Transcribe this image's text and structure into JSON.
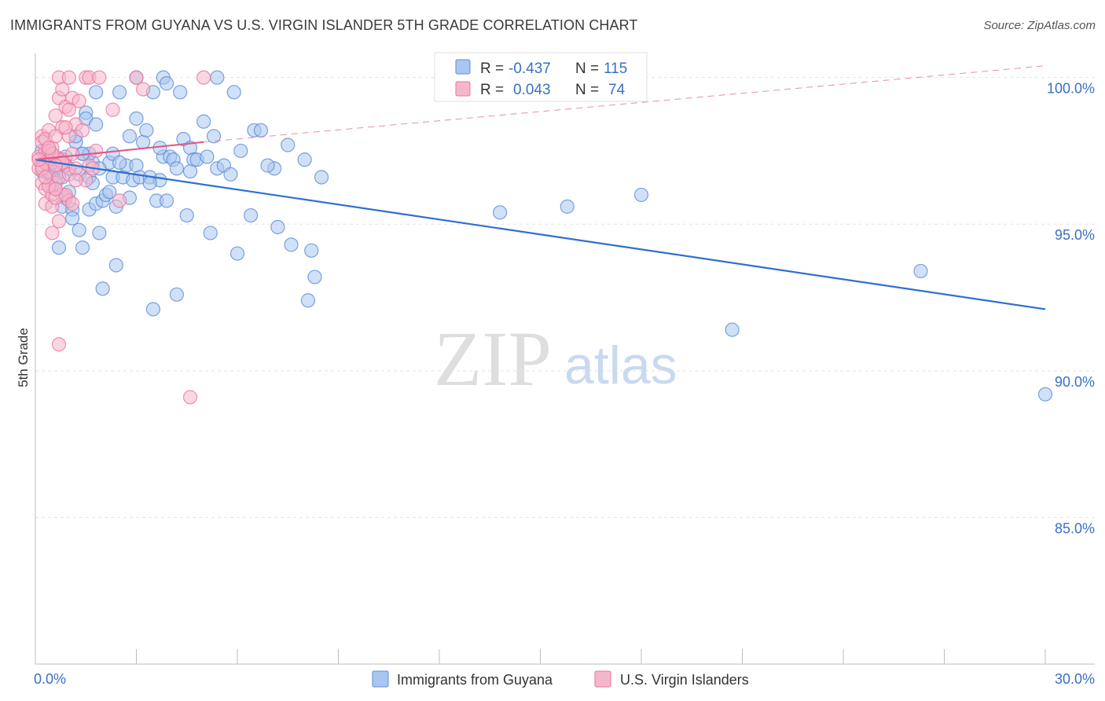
{
  "header": {
    "title": "IMMIGRANTS FROM GUYANA VS U.S. VIRGIN ISLANDER 5TH GRADE CORRELATION CHART",
    "source": "Source: ZipAtlas.com"
  },
  "watermark": {
    "zip": "ZIP",
    "atlas": "atlas"
  },
  "colors": {
    "blue_fill": "#a9c6f0",
    "blue_stroke": "#5b8dd6",
    "blue_line": "#2f6fd0",
    "pink_fill": "#f5b6cb",
    "pink_stroke": "#e8769e",
    "pink_line": "#e05a8a",
    "grid": "#e3e3e3",
    "axis_label": "#3a6fc4"
  },
  "legend": {
    "rows": [
      {
        "r_label": "R =",
        "r_value": "-0.437",
        "n_label": "N =",
        "n_value": "115"
      },
      {
        "r_label": "R =",
        "r_value": "0.043",
        "n_label": "N =",
        "n_value": "74"
      }
    ]
  },
  "chart_data": {
    "type": "scatter",
    "title": "IMMIGRANTS FROM GUYANA VS U.S. VIRGIN ISLANDER 5TH GRADE CORRELATION CHART",
    "xlabel": "",
    "ylabel": "5th Grade",
    "xlim": [
      0,
      30
    ],
    "ylim": [
      80,
      100.5
    ],
    "x_tick_labels": [
      "0.0%",
      "30.0%"
    ],
    "y_ticks": [
      85,
      90,
      95,
      100
    ],
    "y_tick_labels": [
      "85.0%",
      "90.0%",
      "95.0%",
      "100.0%"
    ],
    "grid": true,
    "legend_position": "top-center",
    "series": [
      {
        "name": "Immigrants from Guyana",
        "color": "blue",
        "R": -0.437,
        "N": 115,
        "trend": {
          "x": [
            0,
            30
          ],
          "y": [
            97.2,
            92.1
          ]
        },
        "points": [
          [
            0.2,
            97.5
          ],
          [
            0.2,
            96.8
          ],
          [
            0.3,
            97.3
          ],
          [
            0.4,
            96.7
          ],
          [
            0.4,
            96.9
          ],
          [
            0.5,
            97.1
          ],
          [
            0.5,
            96.3
          ],
          [
            0.6,
            96.5
          ],
          [
            0.6,
            97.0
          ],
          [
            0.7,
            96.8
          ],
          [
            0.7,
            94.2
          ],
          [
            0.8,
            95.6
          ],
          [
            0.8,
            96.6
          ],
          [
            0.9,
            97.0
          ],
          [
            0.9,
            95.9
          ],
          [
            1.0,
            96.1
          ],
          [
            1.0,
            96.9
          ],
          [
            1.1,
            95.5
          ],
          [
            1.1,
            95.2
          ],
          [
            1.2,
            97.8
          ],
          [
            1.3,
            96.7
          ],
          [
            1.4,
            97.4
          ],
          [
            1.4,
            94.2
          ],
          [
            1.5,
            98.8
          ],
          [
            1.5,
            98.6
          ],
          [
            1.6,
            96.6
          ],
          [
            1.6,
            95.5
          ],
          [
            1.7,
            96.4
          ],
          [
            1.7,
            97.1
          ],
          [
            1.8,
            98.4
          ],
          [
            1.8,
            95.7
          ],
          [
            1.9,
            94.7
          ],
          [
            2.0,
            95.8
          ],
          [
            2.1,
            96.0
          ],
          [
            2.2,
            97.1
          ],
          [
            2.3,
            97.4
          ],
          [
            2.3,
            96.6
          ],
          [
            2.4,
            95.6
          ],
          [
            2.5,
            99.5
          ],
          [
            2.6,
            96.6
          ],
          [
            2.7,
            97.0
          ],
          [
            2.8,
            95.9
          ],
          [
            2.9,
            96.5
          ],
          [
            3.0,
            97.0
          ],
          [
            3.0,
            98.6
          ],
          [
            3.1,
            96.6
          ],
          [
            3.2,
            97.8
          ],
          [
            3.3,
            98.2
          ],
          [
            3.4,
            96.6
          ],
          [
            3.5,
            99.5
          ],
          [
            3.6,
            95.8
          ],
          [
            3.7,
            96.5
          ],
          [
            3.8,
            97.3
          ],
          [
            3.9,
            95.8
          ],
          [
            4.0,
            97.3
          ],
          [
            4.1,
            97.2
          ],
          [
            4.2,
            96.9
          ],
          [
            4.3,
            99.5
          ],
          [
            4.4,
            97.9
          ],
          [
            4.5,
            95.3
          ],
          [
            4.6,
            97.6
          ],
          [
            4.7,
            97.2
          ],
          [
            4.8,
            97.2
          ],
          [
            5.0,
            98.5
          ],
          [
            5.1,
            97.3
          ],
          [
            5.2,
            94.7
          ],
          [
            5.3,
            98.0
          ],
          [
            5.4,
            96.9
          ],
          [
            5.6,
            97.0
          ],
          [
            5.8,
            96.7
          ],
          [
            5.9,
            99.5
          ],
          [
            6.0,
            94.0
          ],
          [
            6.1,
            97.5
          ],
          [
            6.4,
            95.3
          ],
          [
            6.5,
            98.2
          ],
          [
            6.7,
            98.2
          ],
          [
            7.1,
            96.9
          ],
          [
            7.2,
            94.9
          ],
          [
            7.5,
            97.7
          ],
          [
            7.6,
            94.3
          ],
          [
            8.0,
            97.2
          ],
          [
            8.2,
            94.1
          ],
          [
            8.5,
            96.6
          ],
          [
            1.3,
            94.8
          ],
          [
            1.6,
            97.4
          ],
          [
            2.0,
            92.8
          ],
          [
            2.4,
            93.6
          ],
          [
            3.5,
            92.1
          ],
          [
            4.2,
            92.6
          ],
          [
            8.3,
            93.2
          ],
          [
            8.1,
            92.4
          ],
          [
            13.8,
            95.4
          ],
          [
            15.8,
            95.6
          ],
          [
            18.0,
            96.0
          ],
          [
            26.3,
            93.4
          ],
          [
            20.7,
            91.4
          ],
          [
            30.0,
            89.2
          ],
          [
            3.8,
            100.0
          ],
          [
            3.9,
            99.8
          ],
          [
            5.4,
            100.0
          ],
          [
            3.0,
            100.0
          ],
          [
            1.8,
            99.5
          ],
          [
            2.8,
            98.0
          ],
          [
            1.4,
            97.4
          ],
          [
            0.9,
            97.3
          ],
          [
            3.4,
            96.4
          ],
          [
            2.5,
            97.1
          ],
          [
            6.9,
            97.0
          ],
          [
            0.6,
            96.9
          ],
          [
            1.2,
            98.0
          ],
          [
            2.2,
            96.1
          ],
          [
            4.6,
            96.8
          ],
          [
            1.9,
            96.9
          ],
          [
            3.7,
            97.6
          ],
          [
            0.5,
            96.6
          ]
        ]
      },
      {
        "name": "U.S. Virgin Islanders",
        "color": "pink",
        "R": 0.043,
        "N": 74,
        "trend": {
          "x": [
            0,
            5
          ],
          "y": [
            97.2,
            97.8
          ]
        },
        "trend_ext": {
          "x": [
            5,
            30
          ],
          "y": [
            97.8,
            100.4
          ]
        },
        "points": [
          [
            0.1,
            97.3
          ],
          [
            0.1,
            96.9
          ],
          [
            0.2,
            97.0
          ],
          [
            0.2,
            96.4
          ],
          [
            0.2,
            98.0
          ],
          [
            0.3,
            97.5
          ],
          [
            0.3,
            96.2
          ],
          [
            0.3,
            95.7
          ],
          [
            0.4,
            97.2
          ],
          [
            0.4,
            96.8
          ],
          [
            0.4,
            98.2
          ],
          [
            0.5,
            97.6
          ],
          [
            0.5,
            96.0
          ],
          [
            0.5,
            97.1
          ],
          [
            0.6,
            98.7
          ],
          [
            0.6,
            96.4
          ],
          [
            0.6,
            97.3
          ],
          [
            0.7,
            99.3
          ],
          [
            0.7,
            95.1
          ],
          [
            0.7,
            96.6
          ],
          [
            0.8,
            98.3
          ],
          [
            0.8,
            97.2
          ],
          [
            0.8,
            96.0
          ],
          [
            0.9,
            99.0
          ],
          [
            0.9,
            97.0
          ],
          [
            1.0,
            98.0
          ],
          [
            1.0,
            95.8
          ],
          [
            1.0,
            96.7
          ],
          [
            1.1,
            99.3
          ],
          [
            1.1,
            97.4
          ],
          [
            1.2,
            98.4
          ],
          [
            1.2,
            96.9
          ],
          [
            0.7,
            100.0
          ],
          [
            0.8,
            99.6
          ],
          [
            1.0,
            100.0
          ],
          [
            1.5,
            100.0
          ],
          [
            1.6,
            100.0
          ],
          [
            1.9,
            100.0
          ],
          [
            3.0,
            100.0
          ],
          [
            3.2,
            99.6
          ],
          [
            5.0,
            100.0
          ],
          [
            1.3,
            99.2
          ],
          [
            1.4,
            98.2
          ],
          [
            1.5,
            96.5
          ],
          [
            1.6,
            97.0
          ],
          [
            1.8,
            97.5
          ],
          [
            2.3,
            98.9
          ],
          [
            2.5,
            95.8
          ],
          [
            0.4,
            96.3
          ],
          [
            0.5,
            95.6
          ],
          [
            0.6,
            95.9
          ],
          [
            0.2,
            97.8
          ],
          [
            0.3,
            97.9
          ],
          [
            0.4,
            97.5
          ],
          [
            0.6,
            98.0
          ],
          [
            0.7,
            97.2
          ],
          [
            0.9,
            96.0
          ],
          [
            1.1,
            95.7
          ],
          [
            0.8,
            97.1
          ],
          [
            0.5,
            94.7
          ],
          [
            0.7,
            90.9
          ],
          [
            4.6,
            89.1
          ],
          [
            0.3,
            97.1
          ],
          [
            0.2,
            96.9
          ],
          [
            0.1,
            97.2
          ],
          [
            0.3,
            96.6
          ],
          [
            0.5,
            97.4
          ],
          [
            0.6,
            96.2
          ],
          [
            0.9,
            98.3
          ],
          [
            1.0,
            98.9
          ],
          [
            0.4,
            97.6
          ],
          [
            0.6,
            97.0
          ],
          [
            1.2,
            96.5
          ],
          [
            1.7,
            96.9
          ]
        ]
      }
    ]
  }
}
